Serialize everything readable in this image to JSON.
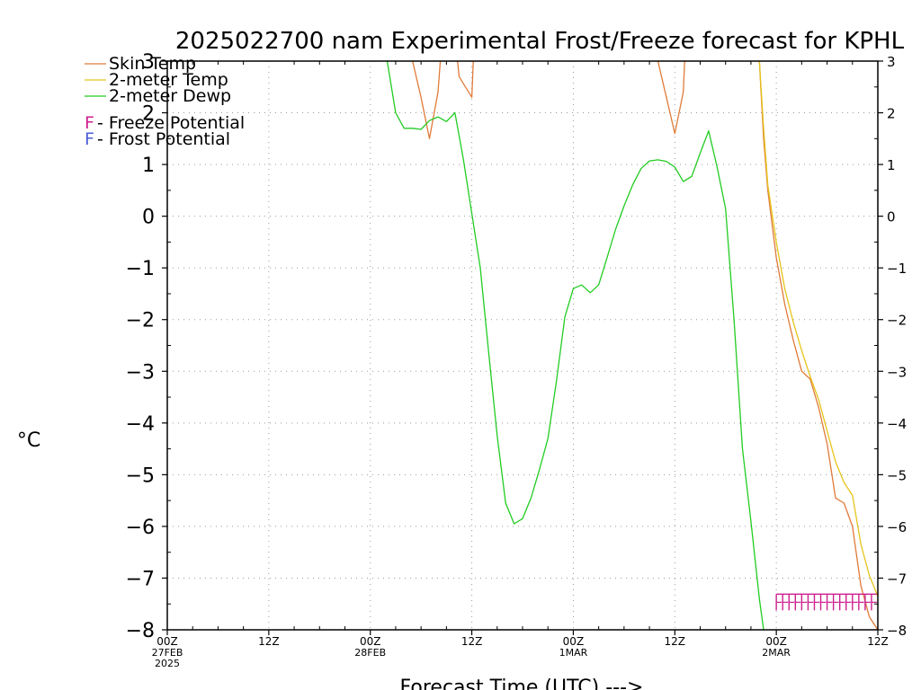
{
  "chart_data": {
    "type": "line",
    "title": "2025022700 nam Experimental Frost/Freeze forecast for KPHL",
    "xlabel": "Forecast Time (UTC) --->",
    "ylabel": "°C",
    "ylim": [
      -8,
      3
    ],
    "xlim": [
      0,
      84
    ],
    "xunit": "forecast hour",
    "yticks": [
      -8,
      -7,
      -6,
      -5,
      -4,
      -3,
      -2,
      -1,
      0,
      1,
      2,
      3
    ],
    "grid": true,
    "legend_position": "top-left",
    "xticks": [
      {
        "x": 0,
        "labels": [
          "00Z",
          "27FEB",
          "2025"
        ]
      },
      {
        "x": 12,
        "labels": [
          "12Z"
        ]
      },
      {
        "x": 24,
        "labels": [
          "00Z",
          "28FEB"
        ]
      },
      {
        "x": 36,
        "labels": [
          "12Z"
        ]
      },
      {
        "x": 48,
        "labels": [
          "00Z",
          "1MAR"
        ]
      },
      {
        "x": 60,
        "labels": [
          "12Z"
        ]
      },
      {
        "x": 72,
        "labels": [
          "00Z",
          "2MAR"
        ]
      },
      {
        "x": 84,
        "labels": [
          "12Z"
        ]
      }
    ],
    "legend": [
      {
        "key": "skin",
        "label": "Skin Temp",
        "color": "#e07b39"
      },
      {
        "key": "t2m",
        "label": "2-meter Temp",
        "color": "#e6c41a"
      },
      {
        "key": "td2m",
        "label": "2-meter Dewp",
        "color": "#22cc22"
      }
    ],
    "markers_legend": [
      {
        "symbol": "F",
        "label": " - Freeze Potential",
        "color": "#cc1f8f"
      },
      {
        "symbol": "F",
        "label": " - Frost Potential",
        "color": "#4a5cd6"
      }
    ],
    "series": [
      {
        "name": "Skin Temp",
        "color": "#e07b39",
        "segments": [
          [
            [
              28.5,
              3.5
            ],
            [
              29,
              3
            ],
            [
              30,
              2.3
            ],
            [
              31,
              1.5
            ],
            [
              32,
              2.4
            ],
            [
              32.5,
              3.5
            ]
          ],
          [
            [
              34,
              3.5
            ],
            [
              34.5,
              2.7
            ],
            [
              36,
              2.3
            ],
            [
              36.3,
              3.5
            ]
          ],
          [
            [
              57.5,
              3.5
            ],
            [
              58,
              3
            ],
            [
              59,
              2.3
            ],
            [
              60,
              1.6
            ],
            [
              61,
              2.4
            ],
            [
              61.3,
              3.5
            ]
          ],
          [
            [
              69.5,
              3.5
            ],
            [
              70,
              3.0
            ],
            [
              70.5,
              1.5
            ],
            [
              71,
              0.5
            ],
            [
              72,
              -0.8
            ],
            [
              73,
              -1.7
            ],
            [
              74,
              -2.4
            ],
            [
              75,
              -3.0
            ],
            [
              76,
              -3.15
            ],
            [
              77,
              -3.7
            ],
            [
              78,
              -4.4
            ],
            [
              79,
              -5.45
            ],
            [
              80,
              -5.55
            ],
            [
              81,
              -6.0
            ],
            [
              82,
              -7.15
            ],
            [
              83,
              -7.75
            ],
            [
              84,
              -8.0
            ]
          ]
        ]
      },
      {
        "name": "2-meter Temp",
        "color": "#e6c41a",
        "segments": [
          [
            [
              69.6,
              3.5
            ],
            [
              70,
              3.0
            ],
            [
              70.5,
              1.7
            ],
            [
              71,
              0.6
            ],
            [
              72,
              -0.5
            ],
            [
              73,
              -1.4
            ],
            [
              74,
              -2.05
            ],
            [
              75,
              -2.6
            ],
            [
              76,
              -3.1
            ],
            [
              77,
              -3.55
            ],
            [
              78,
              -4.15
            ],
            [
              79,
              -4.75
            ],
            [
              80,
              -5.15
            ],
            [
              81,
              -5.4
            ],
            [
              82,
              -6.35
            ],
            [
              83,
              -6.95
            ],
            [
              84,
              -7.35
            ]
          ]
        ]
      },
      {
        "name": "2-meter Dewp",
        "color": "#22cc22",
        "segments": [
          [
            [
              25.5,
              3.5
            ],
            [
              26,
              3.0
            ],
            [
              27,
              2.0
            ],
            [
              28,
              1.7
            ],
            [
              29,
              1.7
            ],
            [
              30,
              1.68
            ],
            [
              31,
              1.85
            ],
            [
              32,
              1.92
            ],
            [
              33,
              1.83
            ],
            [
              34,
              2.0
            ],
            [
              35,
              1.1
            ],
            [
              36,
              0.05
            ],
            [
              37,
              -1.0
            ],
            [
              38,
              -2.65
            ],
            [
              39,
              -4.25
            ],
            [
              40,
              -5.55
            ],
            [
              41,
              -5.95
            ],
            [
              42,
              -5.85
            ],
            [
              43,
              -5.45
            ],
            [
              44,
              -4.9
            ],
            [
              45,
              -4.3
            ],
            [
              46,
              -3.2
            ],
            [
              47,
              -1.95
            ],
            [
              48,
              -1.4
            ],
            [
              49,
              -1.33
            ],
            [
              50,
              -1.48
            ],
            [
              51,
              -1.33
            ],
            [
              52,
              -0.8
            ],
            [
              53,
              -0.25
            ],
            [
              54,
              0.2
            ],
            [
              55,
              0.6
            ],
            [
              56,
              0.92
            ],
            [
              57,
              1.07
            ],
            [
              58,
              1.09
            ],
            [
              59,
              1.06
            ],
            [
              60,
              0.95
            ],
            [
              61,
              0.67
            ],
            [
              62,
              0.77
            ],
            [
              63,
              1.22
            ],
            [
              64,
              1.65
            ],
            [
              65,
              0.95
            ],
            [
              66,
              0.15
            ],
            [
              67,
              -2.0
            ],
            [
              68,
              -4.5
            ],
            [
              69,
              -5.9
            ],
            [
              70,
              -7.4
            ],
            [
              70.5,
              -8.0
            ]
          ]
        ]
      }
    ],
    "freeze_markers": {
      "symbol": "F",
      "color": "#cc1f8f",
      "y": -7.45,
      "x": [
        72,
        72.75,
        73.5,
        74.25,
        75,
        75.75,
        76.5,
        77.25,
        78,
        78.75,
        79.5,
        80.25,
        81,
        81.75,
        82.5,
        83.25
      ]
    }
  }
}
